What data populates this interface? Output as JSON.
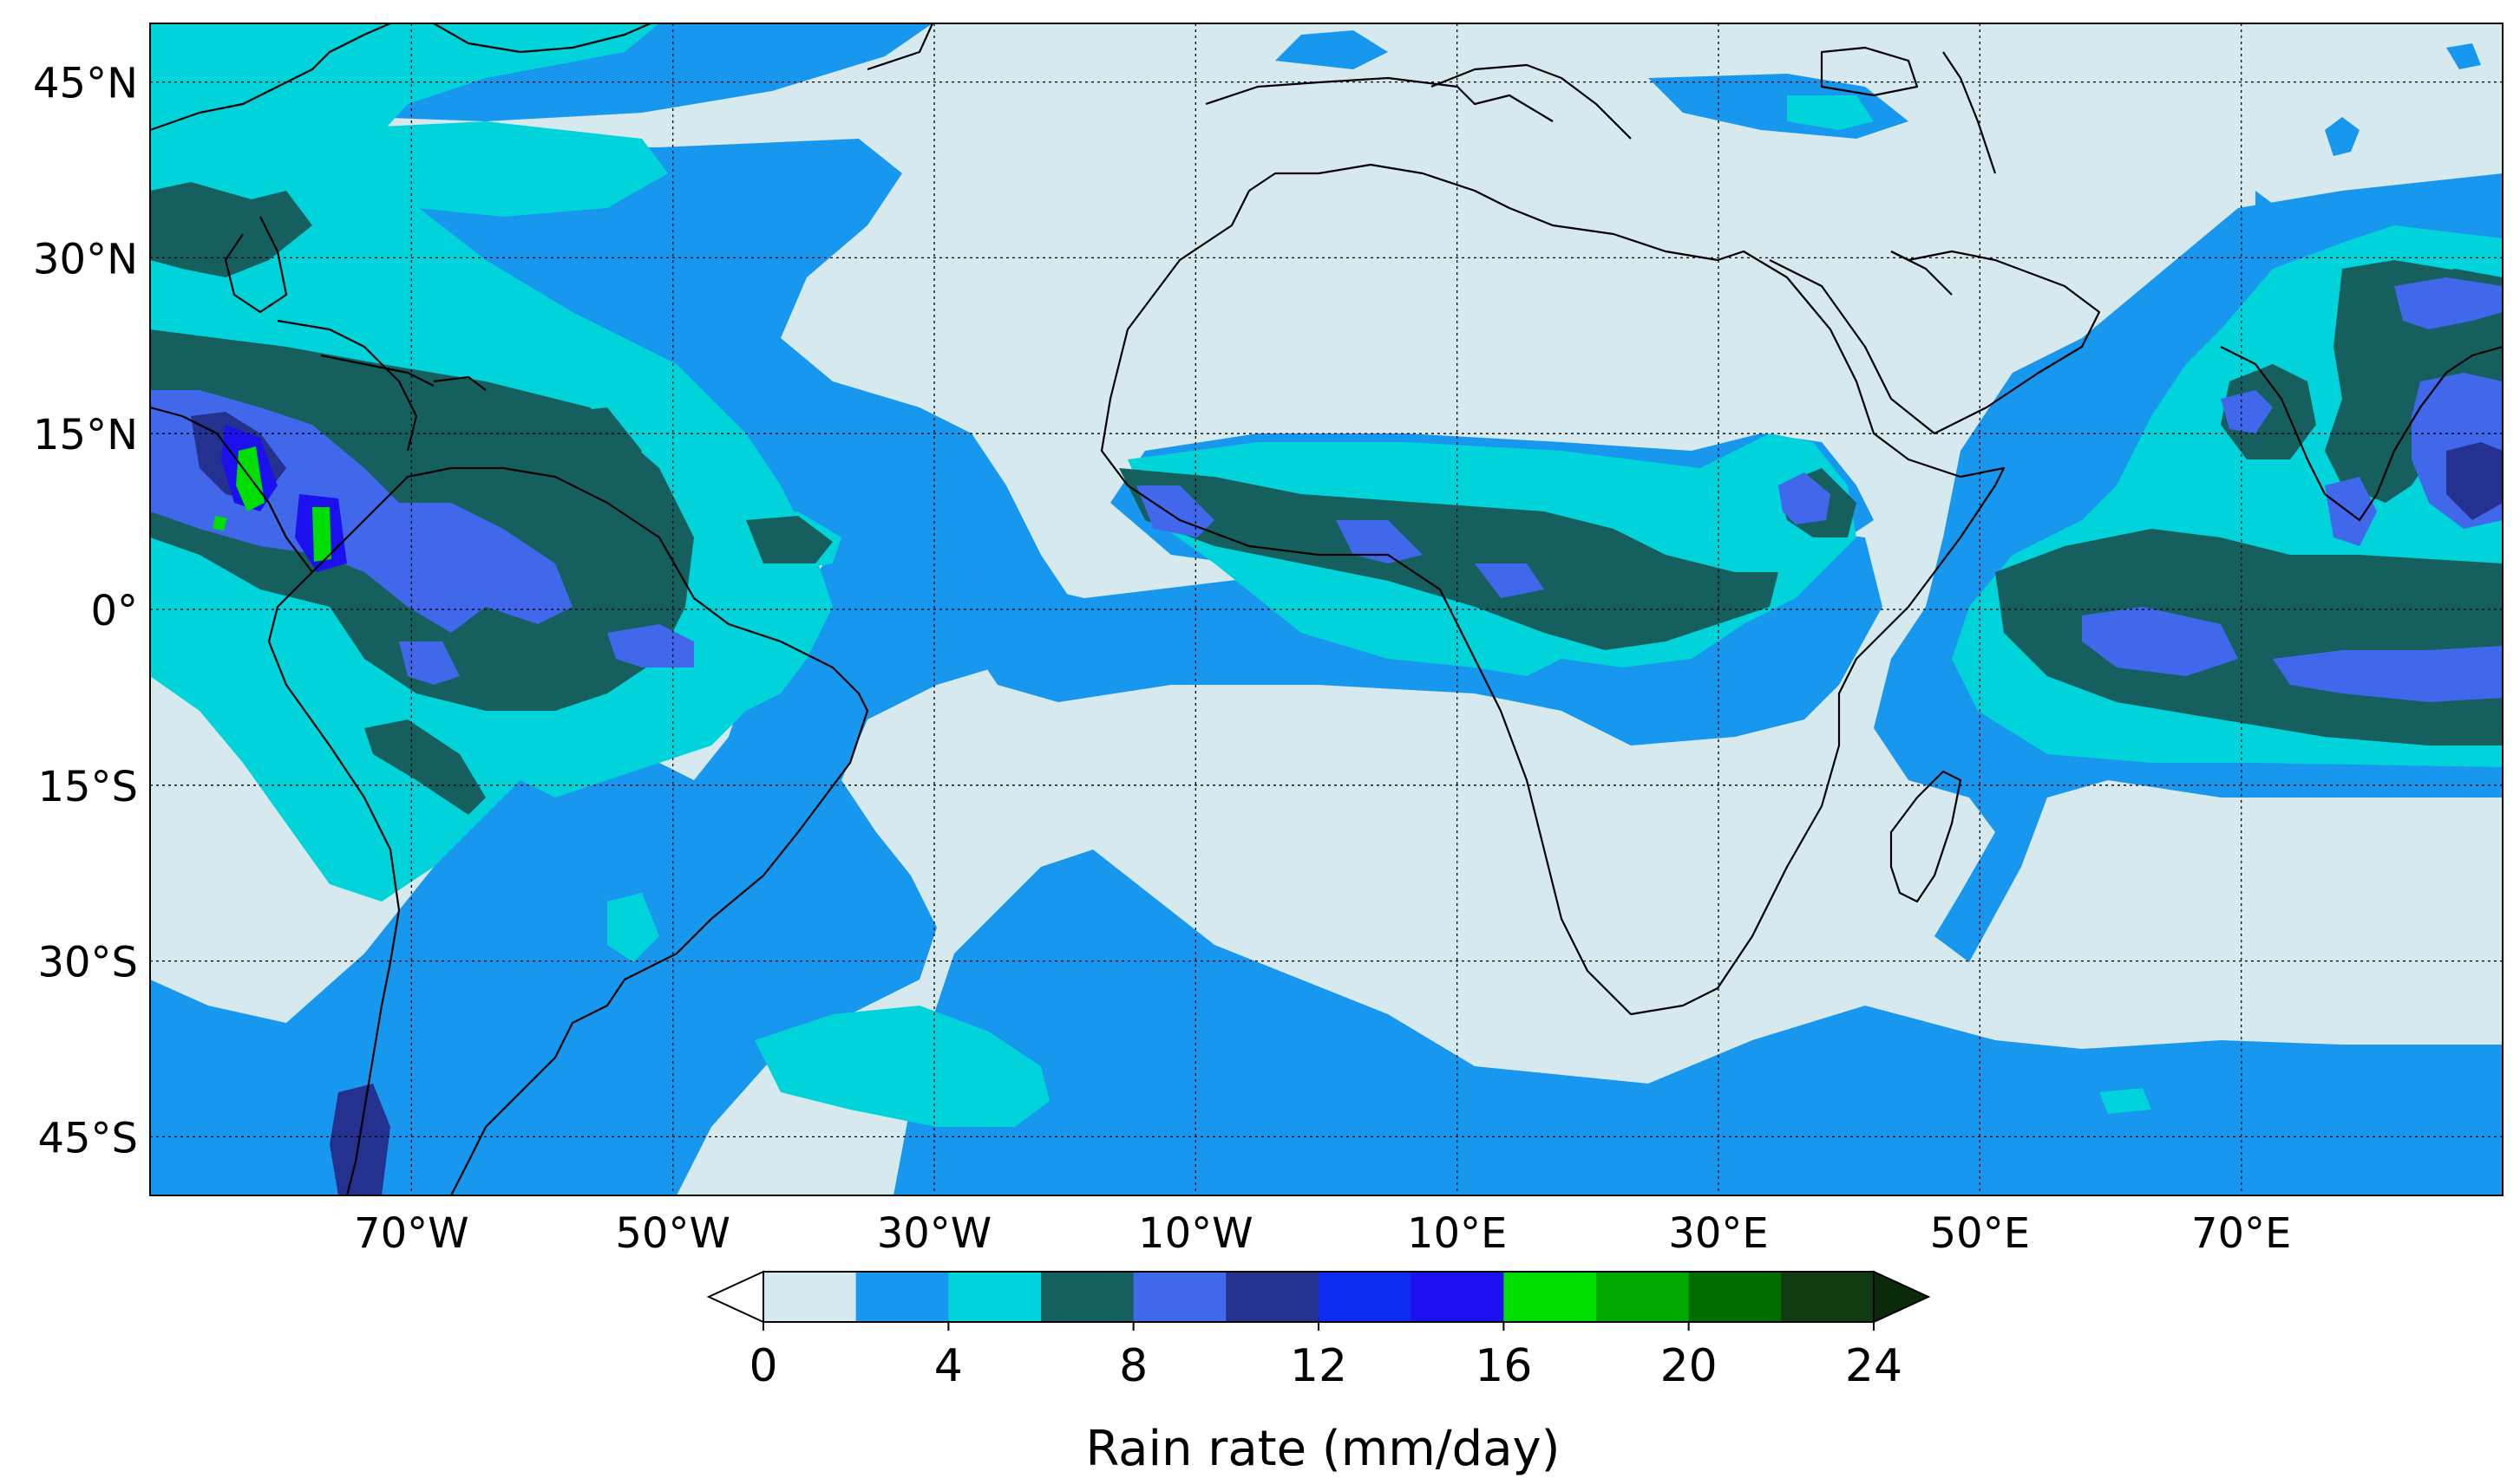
{
  "map": {
    "projection": "PlateCarree",
    "extent": {
      "lon": [
        -90,
        90
      ],
      "lat": [
        -50,
        50
      ]
    },
    "lat_ticks": [
      {
        "value": 45,
        "label": "45°N"
      },
      {
        "value": 30,
        "label": "30°N"
      },
      {
        "value": 15,
        "label": "15°N"
      },
      {
        "value": 0,
        "label": "0°"
      },
      {
        "value": -15,
        "label": "15°S"
      },
      {
        "value": -30,
        "label": "30°S"
      },
      {
        "value": -45,
        "label": "45°S"
      }
    ],
    "lon_ticks": [
      {
        "value": -70,
        "label": "70°W"
      },
      {
        "value": -50,
        "label": "50°W"
      },
      {
        "value": -30,
        "label": "30°W"
      },
      {
        "value": -10,
        "label": "10°W"
      },
      {
        "value": 10,
        "label": "10°E"
      },
      {
        "value": 30,
        "label": "30°E"
      },
      {
        "value": 50,
        "label": "50°E"
      },
      {
        "value": 70,
        "label": "70°E"
      }
    ],
    "gridlines": "dashed",
    "coastlines": true
  },
  "colorbar": {
    "label": "Rain rate (mm/day)",
    "orientation": "horizontal",
    "extend": "both",
    "boundaries": [
      0,
      2,
      4,
      6,
      8,
      10,
      12,
      14,
      16,
      18,
      20,
      22,
      24
    ],
    "tick_labels": [
      "0",
      "4",
      "8",
      "12",
      "16",
      "20",
      "24"
    ],
    "tick_values": [
      0,
      4,
      8,
      12,
      16,
      20,
      24
    ],
    "colors": [
      "#d5e9ef",
      "#1897ee",
      "#00d3da",
      "#155f5f",
      "#4167ea",
      "#24318f",
      "#0d2af0",
      "#1c10ef",
      "#00dd00",
      "#00a800",
      "#006b00",
      "#0f3a12"
    ],
    "under_color": "#ffffff",
    "over_color": "#0a2a0a"
  }
}
